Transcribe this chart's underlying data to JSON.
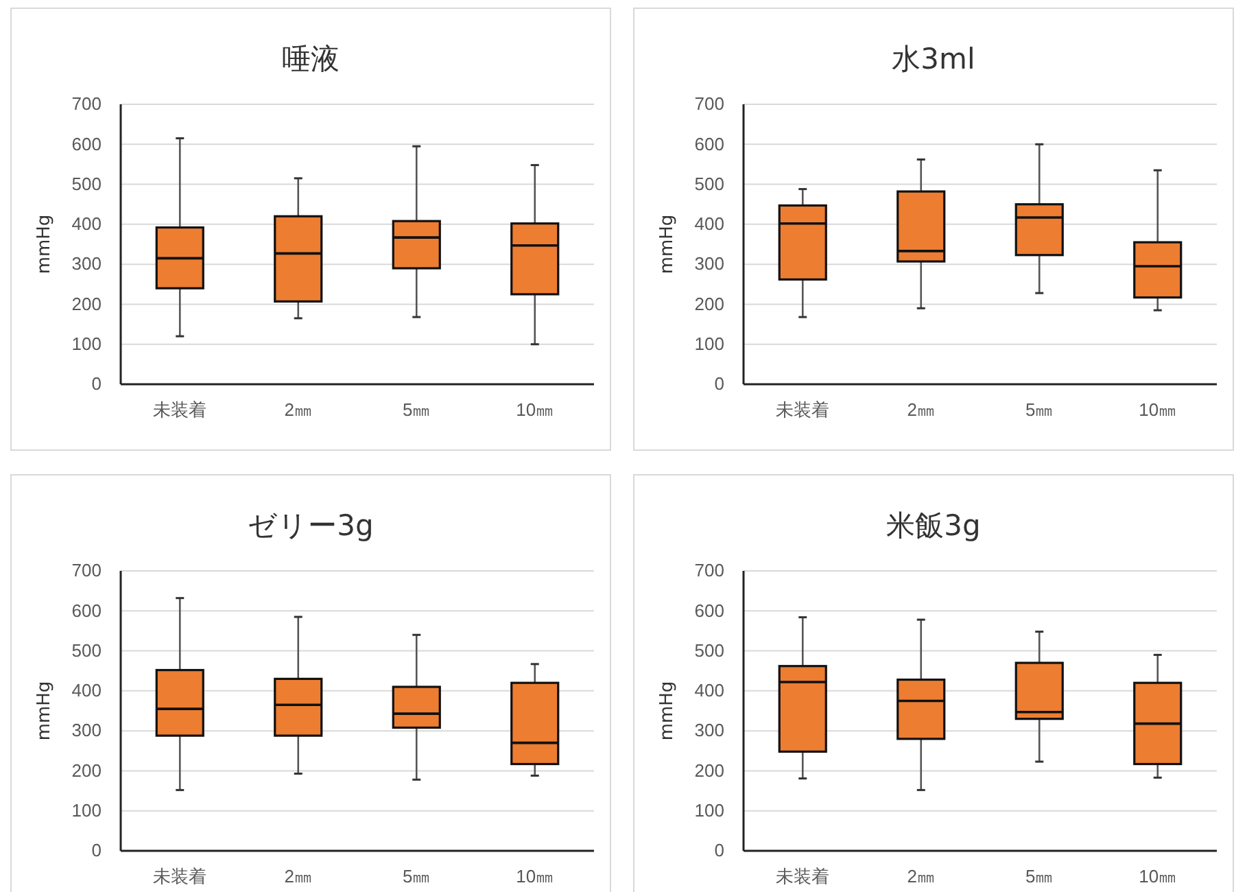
{
  "chart_data": [
    {
      "type": "box",
      "title": "唾液",
      "ylabel": "mmHg",
      "categories": [
        "未装着",
        "2㎜",
        "5㎜",
        "10㎜"
      ],
      "ylim": [
        0,
        700
      ],
      "yticks": [
        0,
        100,
        200,
        300,
        400,
        500,
        600,
        700
      ],
      "grid": "y",
      "series": [
        {
          "color": "#ed7d31",
          "boxes": [
            {
              "low": 120,
              "q1": 240,
              "median": 315,
              "q3": 392,
              "high": 615
            },
            {
              "low": 165,
              "q1": 207,
              "median": 327,
              "q3": 420,
              "high": 515
            },
            {
              "low": 168,
              "q1": 290,
              "median": 367,
              "q3": 408,
              "high": 595
            },
            {
              "low": 100,
              "q1": 225,
              "median": 347,
              "q3": 402,
              "high": 548
            }
          ]
        }
      ]
    },
    {
      "type": "box",
      "title": "水3ml",
      "ylabel": "mmHg",
      "categories": [
        "未装着",
        "2㎜",
        "5㎜",
        "10㎜"
      ],
      "ylim": [
        0,
        700
      ],
      "yticks": [
        0,
        100,
        200,
        300,
        400,
        500,
        600,
        700
      ],
      "grid": "y",
      "series": [
        {
          "color": "#ed7d31",
          "boxes": [
            {
              "low": 168,
              "q1": 262,
              "median": 402,
              "q3": 447,
              "high": 488
            },
            {
              "low": 190,
              "q1": 307,
              "median": 333,
              "q3": 482,
              "high": 562
            },
            {
              "low": 228,
              "q1": 323,
              "median": 417,
              "q3": 450,
              "high": 600
            },
            {
              "low": 185,
              "q1": 217,
              "median": 295,
              "q3": 355,
              "high": 535
            }
          ]
        }
      ]
    },
    {
      "type": "box",
      "title": "ゼリー3g",
      "ylabel": "mmHg",
      "categories": [
        "未装着",
        "2㎜",
        "5㎜",
        "10㎜"
      ],
      "ylim": [
        0,
        700
      ],
      "yticks": [
        0,
        100,
        200,
        300,
        400,
        500,
        600,
        700
      ],
      "grid": "y",
      "series": [
        {
          "color": "#ed7d31",
          "boxes": [
            {
              "low": 152,
              "q1": 288,
              "median": 355,
              "q3": 452,
              "high": 632
            },
            {
              "low": 193,
              "q1": 288,
              "median": 365,
              "q3": 430,
              "high": 585
            },
            {
              "low": 178,
              "q1": 308,
              "median": 343,
              "q3": 410,
              "high": 540
            },
            {
              "low": 188,
              "q1": 217,
              "median": 270,
              "q3": 420,
              "high": 467
            }
          ]
        }
      ]
    },
    {
      "type": "box",
      "title": "米飯3g",
      "ylabel": "mmHg",
      "categories": [
        "未装着",
        "2㎜",
        "5㎜",
        "10㎜"
      ],
      "ylim": [
        0,
        700
      ],
      "yticks": [
        0,
        100,
        200,
        300,
        400,
        500,
        600,
        700
      ],
      "grid": "y",
      "series": [
        {
          "color": "#ed7d31",
          "boxes": [
            {
              "low": 181,
              "q1": 248,
              "median": 422,
              "q3": 462,
              "high": 584
            },
            {
              "low": 152,
              "q1": 280,
              "median": 375,
              "q3": 428,
              "high": 578
            },
            {
              "low": 223,
              "q1": 330,
              "median": 347,
              "q3": 470,
              "high": 548
            },
            {
              "low": 183,
              "q1": 217,
              "median": 318,
              "q3": 420,
              "high": 490
            }
          ]
        }
      ]
    }
  ]
}
